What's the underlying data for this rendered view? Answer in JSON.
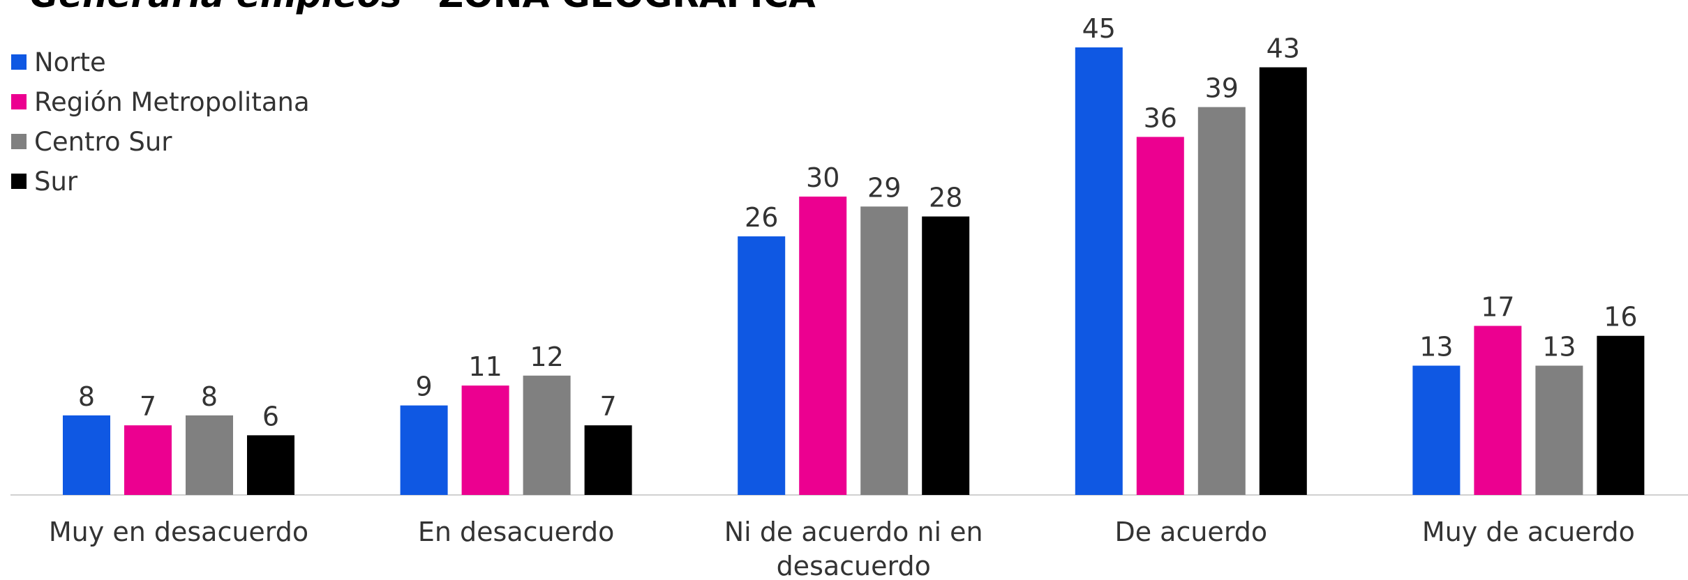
{
  "chart_data": {
    "type": "bar",
    "title": "Generaría empleos",
    "subtitle": "- ZONA GEOGRÁFICA",
    "categories": [
      "Muy en desacuerdo",
      "En desacuerdo",
      "Ni de acuerdo ni en desacuerdo",
      "De acuerdo",
      "Muy de acuerdo"
    ],
    "series": [
      {
        "name": "Norte",
        "color": "#0f58e3",
        "values": [
          8,
          9,
          26,
          45,
          13
        ]
      },
      {
        "name": "Región Metropolitana",
        "color": "#ec0090",
        "values": [
          7,
          11,
          30,
          36,
          17
        ]
      },
      {
        "name": "Centro Sur",
        "color": "#808080",
        "values": [
          8,
          12,
          29,
          39,
          13
        ]
      },
      {
        "name": "Sur",
        "color": "#000000",
        "values": [
          6,
          7,
          28,
          43,
          16
        ]
      }
    ],
    "legend": "top-left"
  }
}
